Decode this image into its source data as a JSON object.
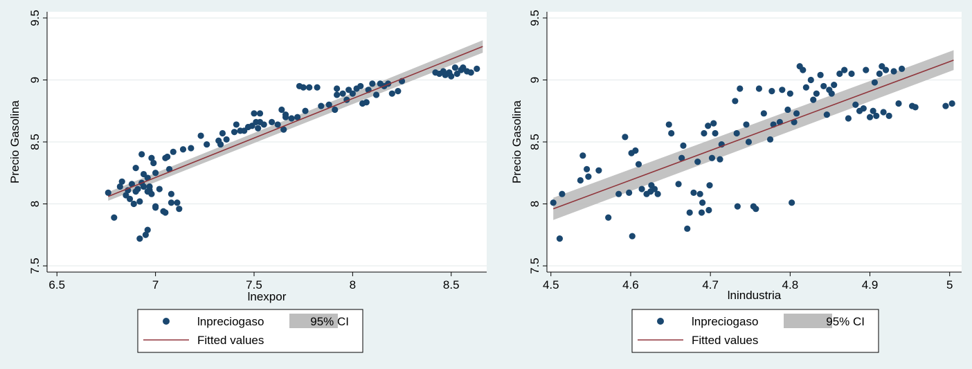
{
  "colors": {
    "background": "#eaf2f3",
    "plot_area": "#ffffff",
    "points": "#1a476f",
    "fitted_line": "#90353b",
    "ci_band": "#bdbdbd"
  },
  "chart_data": [
    {
      "type": "scatter",
      "xlabel": "lnexpor",
      "ylabel": "Precio Gasolina",
      "xlim": [
        6.45,
        8.68
      ],
      "ylim": [
        7.45,
        9.55
      ],
      "xticks": [
        6.5,
        7,
        7.5,
        8,
        8.5
      ],
      "xtick_labels": [
        "6.5",
        "7",
        "7.5",
        "8",
        "8.5"
      ],
      "yticks": [
        7.5,
        8,
        8.5,
        9,
        9.5
      ],
      "ytick_labels": [
        "7.5",
        "8",
        "8.5",
        "9",
        "9.5"
      ],
      "grid": true,
      "legend_position": "bottom",
      "legend": {
        "points": "lnpreciogaso",
        "ci": "95% CI",
        "fit": "Fitted values"
      },
      "fit": {
        "x": [
          6.76,
          8.66
        ],
        "y": [
          8.06,
          9.27
        ],
        "ci_half_width": [
          0.035,
          0.05
        ]
      },
      "points": [
        [
          6.76,
          8.09
        ],
        [
          6.79,
          7.89
        ],
        [
          6.82,
          8.14
        ],
        [
          6.83,
          8.18
        ],
        [
          6.85,
          8.07
        ],
        [
          6.86,
          8.11
        ],
        [
          6.87,
          8.04
        ],
        [
          6.88,
          8.16
        ],
        [
          6.89,
          8.0
        ],
        [
          6.9,
          8.29
        ],
        [
          6.9,
          8.1
        ],
        [
          6.91,
          8.12
        ],
        [
          6.92,
          8.02
        ],
        [
          6.92,
          7.72
        ],
        [
          6.93,
          8.4
        ],
        [
          6.93,
          8.17
        ],
        [
          6.94,
          8.24
        ],
        [
          6.94,
          8.14
        ],
        [
          6.95,
          7.75
        ],
        [
          6.96,
          7.79
        ],
        [
          6.96,
          8.21
        ],
        [
          6.96,
          8.1
        ],
        [
          6.97,
          8.11
        ],
        [
          6.97,
          8.14
        ],
        [
          6.98,
          8.08
        ],
        [
          6.98,
          8.37
        ],
        [
          6.99,
          8.33
        ],
        [
          7.0,
          7.98
        ],
        [
          7.0,
          7.97
        ],
        [
          7.0,
          8.25
        ],
        [
          7.02,
          8.12
        ],
        [
          7.04,
          7.94
        ],
        [
          7.05,
          7.93
        ],
        [
          7.05,
          8.37
        ],
        [
          7.06,
          8.38
        ],
        [
          7.07,
          8.28
        ],
        [
          7.08,
          8.01
        ],
        [
          7.08,
          8.08
        ],
        [
          7.09,
          8.42
        ],
        [
          7.11,
          8.01
        ],
        [
          7.12,
          7.96
        ],
        [
          7.14,
          8.44
        ],
        [
          7.18,
          8.45
        ],
        [
          7.23,
          8.55
        ],
        [
          7.26,
          8.48
        ],
        [
          7.32,
          8.51
        ],
        [
          7.33,
          8.48
        ],
        [
          7.34,
          8.57
        ],
        [
          7.36,
          8.52
        ],
        [
          7.4,
          8.58
        ],
        [
          7.41,
          8.64
        ],
        [
          7.43,
          8.59
        ],
        [
          7.45,
          8.59
        ],
        [
          7.47,
          8.62
        ],
        [
          7.49,
          8.63
        ],
        [
          7.5,
          8.73
        ],
        [
          7.51,
          8.66
        ],
        [
          7.52,
          8.61
        ],
        [
          7.53,
          8.73
        ],
        [
          7.53,
          8.66
        ],
        [
          7.55,
          8.64
        ],
        [
          7.59,
          8.66
        ],
        [
          7.62,
          8.64
        ],
        [
          7.64,
          8.76
        ],
        [
          7.65,
          8.6
        ],
        [
          7.66,
          8.72
        ],
        [
          7.66,
          8.7
        ],
        [
          7.69,
          8.69
        ],
        [
          7.72,
          8.7
        ],
        [
          7.73,
          8.95
        ],
        [
          7.75,
          8.94
        ],
        [
          7.76,
          8.75
        ],
        [
          7.78,
          8.94
        ],
        [
          7.82,
          8.94
        ],
        [
          7.84,
          8.79
        ],
        [
          7.88,
          8.8
        ],
        [
          7.91,
          8.76
        ],
        [
          7.92,
          8.93
        ],
        [
          7.92,
          8.88
        ],
        [
          7.95,
          8.89
        ],
        [
          7.97,
          8.84
        ],
        [
          7.98,
          8.92
        ],
        [
          8.0,
          8.89
        ],
        [
          8.02,
          8.93
        ],
        [
          8.04,
          8.95
        ],
        [
          8.05,
          8.81
        ],
        [
          8.07,
          8.82
        ],
        [
          8.08,
          8.92
        ],
        [
          8.1,
          8.97
        ],
        [
          8.12,
          8.88
        ],
        [
          8.14,
          8.97
        ],
        [
          8.16,
          8.95
        ],
        [
          8.18,
          8.97
        ],
        [
          8.2,
          8.89
        ],
        [
          8.23,
          8.91
        ],
        [
          8.25,
          8.99
        ],
        [
          8.42,
          9.06
        ],
        [
          8.44,
          9.05
        ],
        [
          8.46,
          9.07
        ],
        [
          8.47,
          9.04
        ],
        [
          8.49,
          9.06
        ],
        [
          8.5,
          9.03
        ],
        [
          8.52,
          9.1
        ],
        [
          8.53,
          9.05
        ],
        [
          8.55,
          9.08
        ],
        [
          8.56,
          9.1
        ],
        [
          8.58,
          9.07
        ],
        [
          8.6,
          9.06
        ],
        [
          8.63,
          9.09
        ]
      ]
    },
    {
      "type": "scatter",
      "xlabel": "lnindustria",
      "ylabel": "Precio Gasolina",
      "xlim": [
        4.495,
        5.015
      ],
      "ylim": [
        7.45,
        9.55
      ],
      "xticks": [
        4.5,
        4.6,
        4.7,
        4.8,
        4.9,
        5
      ],
      "xtick_labels": [
        "4.5",
        "4.6",
        "4.7",
        "4.8",
        "4.9",
        "5"
      ],
      "yticks": [
        7.5,
        8,
        8.5,
        9,
        9.5
      ],
      "ytick_labels": [
        "7.5",
        "8",
        "8.5",
        "9",
        "9.5"
      ],
      "grid": true,
      "legend_position": "bottom",
      "legend": {
        "points": "lnpreciogaso",
        "ci": "95% CI",
        "fit": "Fitted values"
      },
      "fit": {
        "x": [
          4.503,
          5.005
        ],
        "y": [
          7.96,
          9.16
        ],
        "ci_half_width": [
          0.09,
          0.08
        ]
      },
      "points": [
        [
          4.503,
          8.01
        ],
        [
          4.511,
          7.72
        ],
        [
          4.514,
          8.08
        ],
        [
          4.537,
          8.19
        ],
        [
          4.54,
          8.39
        ],
        [
          4.545,
          8.28
        ],
        [
          4.547,
          8.22
        ],
        [
          4.56,
          8.27
        ],
        [
          4.572,
          7.89
        ],
        [
          4.585,
          8.08
        ],
        [
          4.593,
          8.54
        ],
        [
          4.598,
          8.09
        ],
        [
          4.601,
          8.41
        ],
        [
          4.602,
          7.74
        ],
        [
          4.606,
          8.43
        ],
        [
          4.61,
          8.32
        ],
        [
          4.614,
          8.12
        ],
        [
          4.62,
          8.08
        ],
        [
          4.625,
          8.1
        ],
        [
          4.626,
          8.15
        ],
        [
          4.63,
          8.12
        ],
        [
          4.634,
          8.08
        ],
        [
          4.648,
          8.64
        ],
        [
          4.651,
          8.57
        ],
        [
          4.66,
          8.16
        ],
        [
          4.664,
          8.37
        ],
        [
          4.666,
          8.47
        ],
        [
          4.671,
          7.8
        ],
        [
          4.674,
          7.93
        ],
        [
          4.679,
          8.09
        ],
        [
          4.684,
          8.34
        ],
        [
          4.687,
          8.08
        ],
        [
          4.689,
          7.93
        ],
        [
          4.69,
          8.01
        ],
        [
          4.692,
          8.57
        ],
        [
          4.697,
          8.63
        ],
        [
          4.698,
          7.95
        ],
        [
          4.699,
          8.15
        ],
        [
          4.702,
          8.37
        ],
        [
          4.704,
          8.65
        ],
        [
          4.706,
          8.57
        ],
        [
          4.712,
          8.36
        ],
        [
          4.714,
          8.48
        ],
        [
          4.731,
          8.83
        ],
        [
          4.733,
          8.57
        ],
        [
          4.734,
          7.98
        ],
        [
          4.737,
          8.93
        ],
        [
          4.745,
          8.64
        ],
        [
          4.748,
          8.5
        ],
        [
          4.754,
          7.98
        ],
        [
          4.757,
          7.96
        ],
        [
          4.761,
          8.93
        ],
        [
          4.767,
          8.73
        ],
        [
          4.775,
          8.52
        ],
        [
          4.777,
          8.91
        ],
        [
          4.779,
          8.64
        ],
        [
          4.787,
          8.66
        ],
        [
          4.79,
          8.92
        ],
        [
          4.797,
          8.76
        ],
        [
          4.8,
          8.89
        ],
        [
          4.802,
          8.01
        ],
        [
          4.805,
          8.66
        ],
        [
          4.808,
          8.73
        ],
        [
          4.812,
          9.11
        ],
        [
          4.816,
          9.08
        ],
        [
          4.82,
          8.94
        ],
        [
          4.826,
          9.0
        ],
        [
          4.829,
          8.84
        ],
        [
          4.833,
          8.89
        ],
        [
          4.838,
          9.04
        ],
        [
          4.842,
          8.95
        ],
        [
          4.846,
          8.72
        ],
        [
          4.849,
          8.92
        ],
        [
          4.852,
          8.89
        ],
        [
          4.855,
          8.96
        ],
        [
          4.862,
          9.05
        ],
        [
          4.868,
          9.08
        ],
        [
          4.873,
          8.69
        ],
        [
          4.877,
          9.05
        ],
        [
          4.882,
          8.8
        ],
        [
          4.887,
          8.75
        ],
        [
          4.892,
          8.77
        ],
        [
          4.895,
          9.08
        ],
        [
          4.9,
          8.7
        ],
        [
          4.904,
          8.75
        ],
        [
          4.906,
          8.98
        ],
        [
          4.908,
          8.71
        ],
        [
          4.912,
          9.05
        ],
        [
          4.915,
          9.11
        ],
        [
          4.917,
          8.74
        ],
        [
          4.92,
          9.08
        ],
        [
          4.924,
          8.71
        ],
        [
          4.93,
          9.07
        ],
        [
          4.936,
          8.81
        ],
        [
          4.94,
          9.09
        ],
        [
          4.953,
          8.79
        ],
        [
          4.957,
          8.78
        ],
        [
          4.995,
          8.79
        ],
        [
          5.003,
          8.81
        ]
      ]
    }
  ]
}
